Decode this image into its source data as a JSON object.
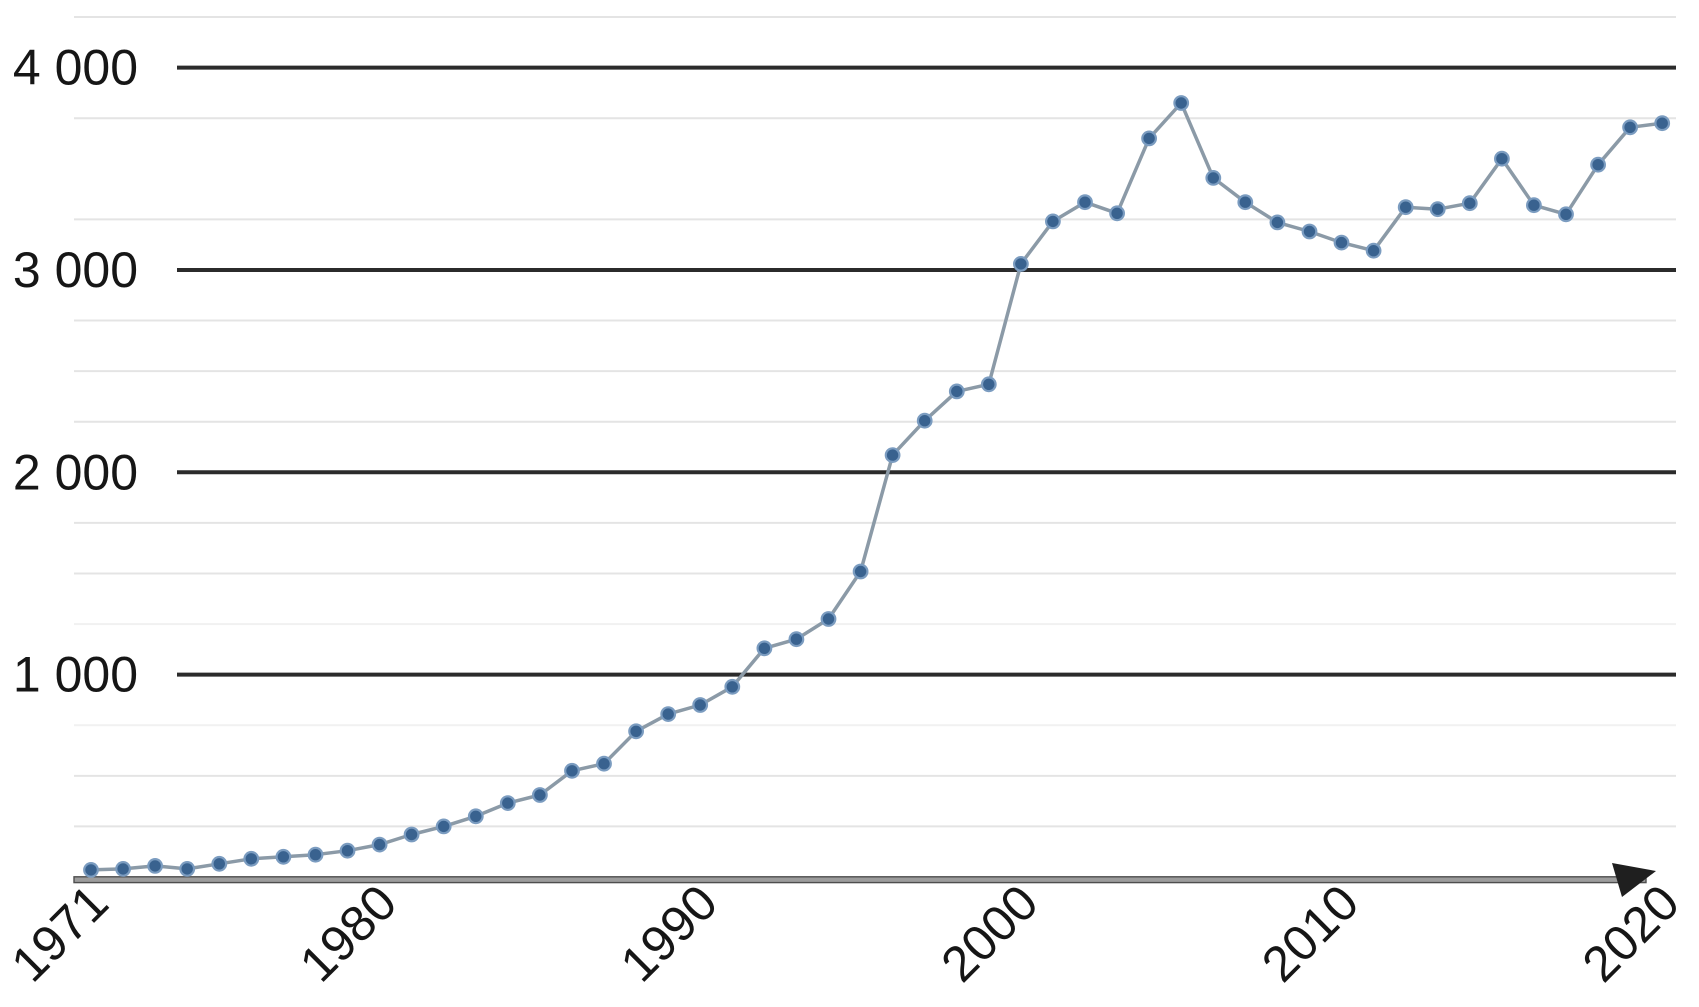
{
  "chart_data": {
    "type": "line",
    "title": "",
    "xlabel": "",
    "ylabel": "",
    "x": [
      1971,
      1972,
      1973,
      1974,
      1975,
      1976,
      1977,
      1978,
      1979,
      1980,
      1981,
      1982,
      1983,
      1984,
      1985,
      1986,
      1987,
      1988,
      1989,
      1990,
      1991,
      1992,
      1993,
      1994,
      1995,
      1996,
      1997,
      1998,
      1999,
      2000,
      2001,
      2002,
      2003,
      2004,
      2005,
      2006,
      2007,
      2008,
      2009,
      2010,
      2011,
      2012,
      2013,
      2014,
      2015,
      2016,
      2017,
      2018,
      2019,
      2020
    ],
    "values": [
      35,
      40,
      55,
      40,
      65,
      90,
      100,
      110,
      130,
      160,
      210,
      250,
      300,
      365,
      405,
      525,
      560,
      720,
      805,
      850,
      940,
      1130,
      1175,
      1275,
      1510,
      2085,
      2255,
      2400,
      2435,
      3030,
      3240,
      3335,
      3280,
      3650,
      3825,
      3455,
      3335,
      3235,
      3190,
      3135,
      3095,
      3310,
      3300,
      3330,
      3550,
      3320,
      3275,
      3520,
      3705,
      3725
    ],
    "ylim": [
      0,
      4250
    ],
    "major_gridline_step": 1000,
    "minor_gridline_values": [
      250,
      500,
      750,
      1250,
      1500,
      1750,
      2250,
      2500,
      2750,
      3250,
      3750,
      4250
    ],
    "faint_minor_values": [
      750,
      1250
    ],
    "y_ticks": [
      {
        "value": 4000,
        "label": "4 000"
      },
      {
        "value": 3000,
        "label": "3 000"
      },
      {
        "value": 2000,
        "label": "2 000"
      },
      {
        "value": 1000,
        "label": "1 000"
      }
    ],
    "x_ticks": [
      {
        "year": 1971,
        "label": "1971"
      },
      {
        "year": 1980,
        "label": "1980"
      },
      {
        "year": 1990,
        "label": "1990"
      },
      {
        "year": 2000,
        "label": "2000"
      },
      {
        "year": 2010,
        "label": "2010"
      },
      {
        "year": 2020,
        "label": "2020"
      }
    ],
    "x_axis_arrow": true,
    "grid": "horizontal",
    "legend": "none",
    "colors": {
      "background": "#ffffff",
      "series_line": "#8b9aa7",
      "marker_fill": "#39628f",
      "marker_ring": "#7b9cc0",
      "major_gridline": "#2b2b2b",
      "minor_gridline": "#e4e4e4",
      "faint_gridline": "#f1f1f1",
      "axis_band": "#9c9c9c",
      "axis_edge": "#4e4e4e",
      "arrow": "#1f1f1f",
      "label_text": "#161616"
    }
  }
}
